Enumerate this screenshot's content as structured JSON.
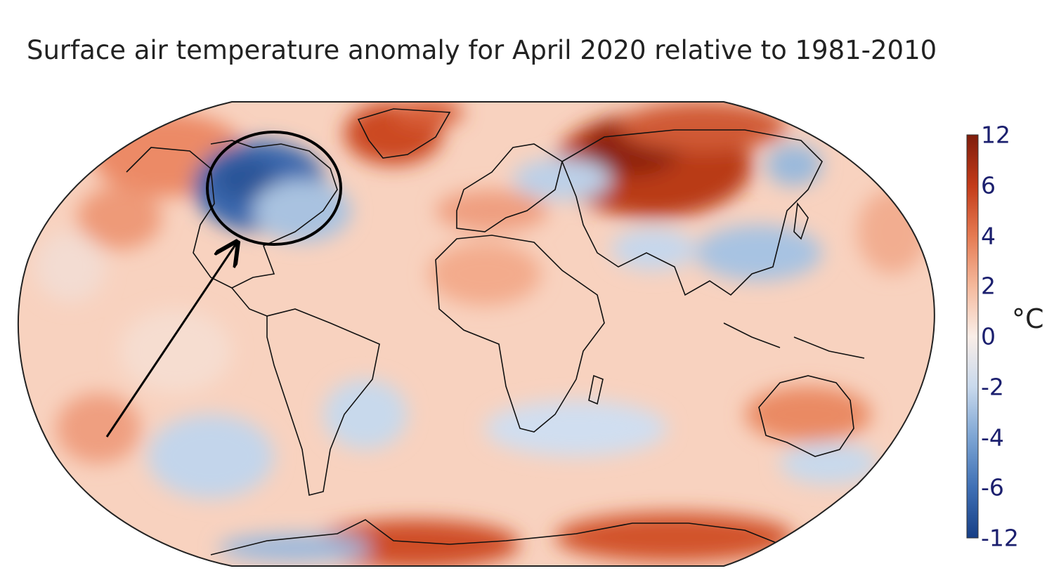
{
  "title": "Surface air temperature anomaly for April 2020 relative to 1981-2010",
  "colorbar": {
    "unit": "°C",
    "ticks": [
      "12",
      "6",
      "4",
      "2",
      "0",
      "-2",
      "-4",
      "-6",
      "-12"
    ],
    "colors": [
      "#7f1d0c",
      "#c33b19",
      "#e57a52",
      "#f5b99c",
      "#faeee8",
      "#c9d9ec",
      "#7da5d4",
      "#3f70b5",
      "#173f86"
    ]
  },
  "map": {
    "projection": "robinson",
    "background_color": "#f8d2bf",
    "annotation": {
      "shape": "ellipse-with-arrow",
      "highlighted_region": "North America (Canada / northern United States)",
      "anomaly_sign": "negative"
    }
  }
}
